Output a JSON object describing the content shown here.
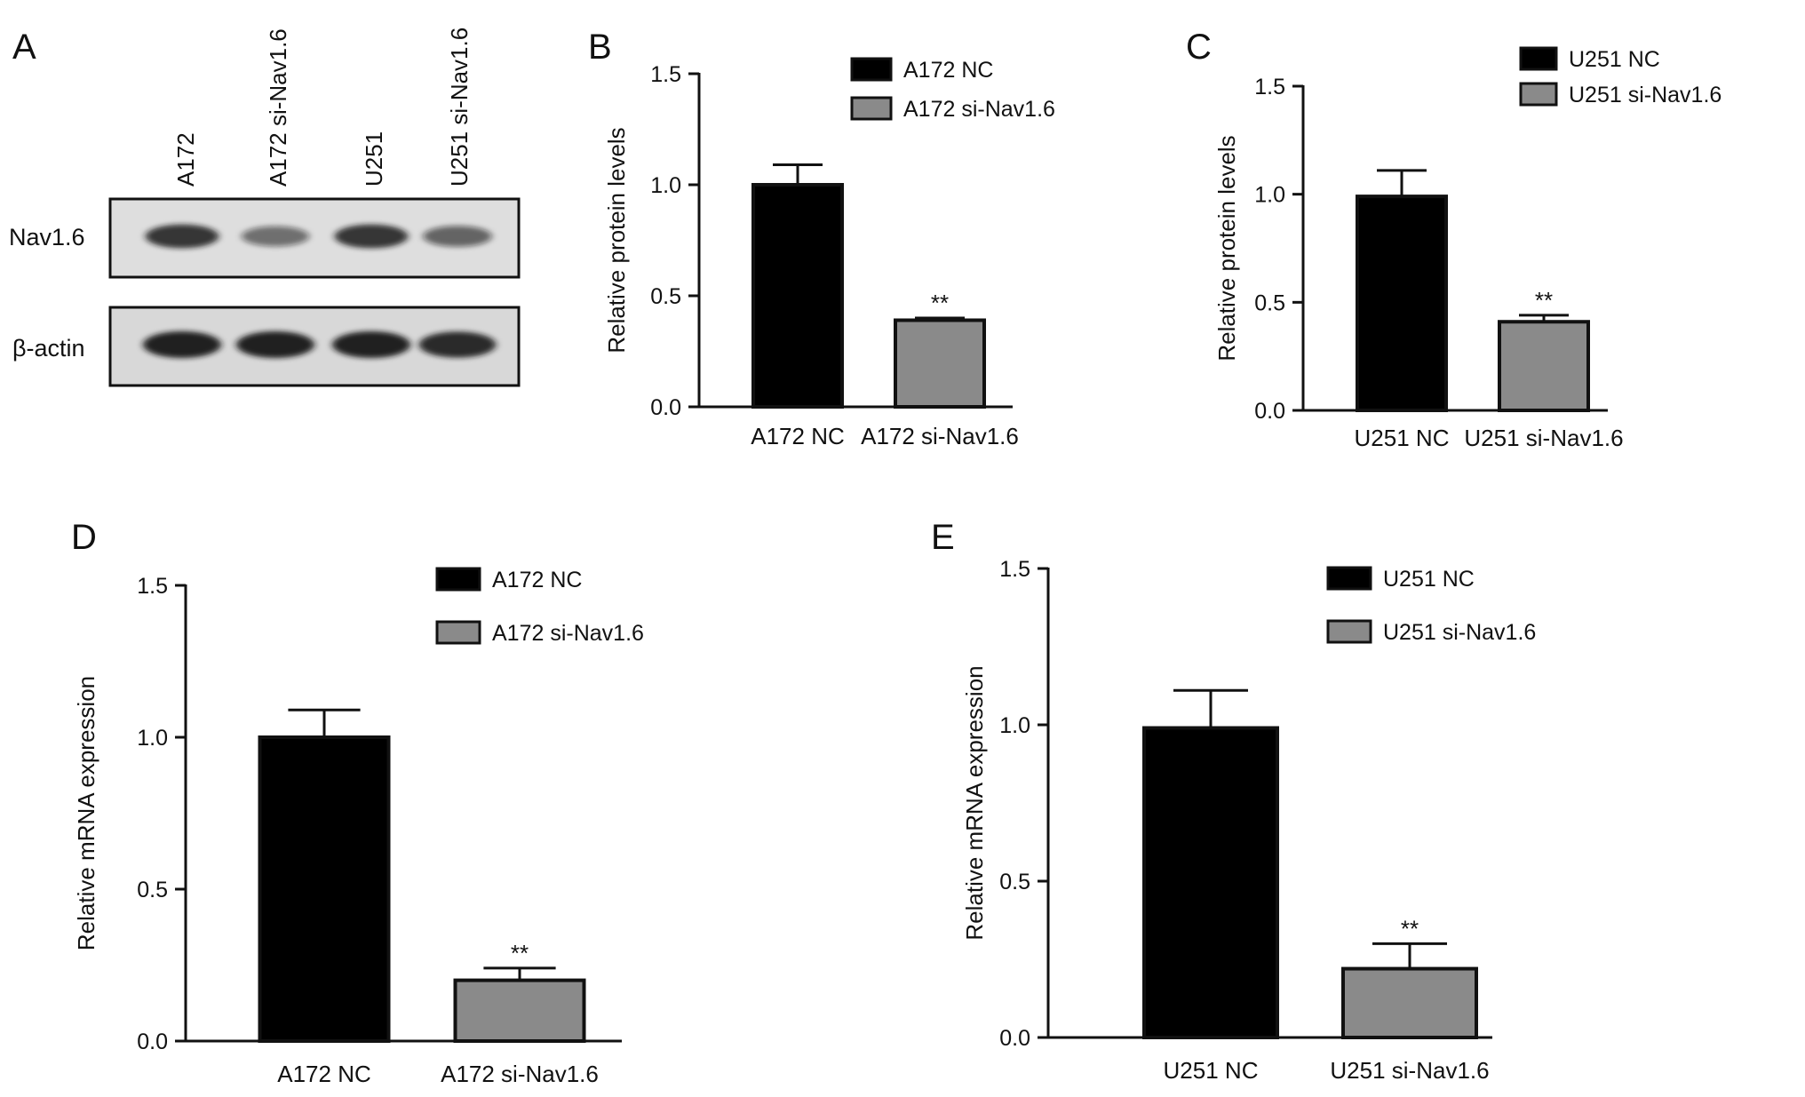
{
  "panel_letters": [
    "A",
    "B",
    "C",
    "D",
    "E"
  ],
  "blot": {
    "lanes": [
      "A172",
      "A172 si-Nav1.6",
      "U251",
      "U251 si-Nav1.6"
    ],
    "rows": [
      {
        "label": "Nav1.6",
        "band_intensity": [
          0.85,
          0.55,
          0.85,
          0.6
        ],
        "band_thickness": [
          0.8,
          0.55,
          0.8,
          0.6
        ]
      },
      {
        "label": "β-actin",
        "band_intensity": [
          0.95,
          0.95,
          0.95,
          0.9
        ],
        "band_thickness": [
          1.0,
          1.0,
          1.0,
          0.95
        ]
      }
    ]
  },
  "colors": {
    "nc": "#000000",
    "si": "#8a8a8a",
    "blot_bg": "#dedede",
    "band": "#141414"
  },
  "chart_data": [
    {
      "panel": "B",
      "type": "bar",
      "categories": [
        "A172 NC",
        "A172 si-Nav1.6"
      ],
      "values": [
        1.0,
        0.39
      ],
      "errors": [
        0.09,
        0.01
      ],
      "significance": [
        "",
        "**"
      ],
      "ylabel": "Relative protein levels",
      "ylim": [
        0,
        1.5
      ],
      "yticks": [
        "0.0",
        "0.5",
        "1.0",
        "1.5"
      ],
      "legend": [
        "A172 NC",
        "A172 si-Nav1.6"
      ],
      "legend_position": "top-right"
    },
    {
      "panel": "C",
      "type": "bar",
      "categories": [
        "U251 NC",
        "U251 si-Nav1.6"
      ],
      "values": [
        0.99,
        0.41
      ],
      "errors": [
        0.12,
        0.03
      ],
      "significance": [
        "",
        "**"
      ],
      "ylabel": "Relative protein levels",
      "ylim": [
        0,
        1.5
      ],
      "yticks": [
        "0.0",
        "0.5",
        "1.0",
        "1.5"
      ],
      "legend": [
        "U251 NC",
        "U251 si-Nav1.6"
      ],
      "legend_position": "top-right"
    },
    {
      "panel": "D",
      "type": "bar",
      "categories": [
        "A172 NC",
        "A172 si-Nav1.6"
      ],
      "values": [
        1.0,
        0.2
      ],
      "errors": [
        0.09,
        0.04
      ],
      "significance": [
        "",
        "**"
      ],
      "ylabel": "Relative mRNA expression",
      "ylim": [
        0,
        1.5
      ],
      "yticks": [
        "0.0",
        "0.5",
        "1.0",
        "1.5"
      ],
      "legend": [
        "A172 NC",
        "A172 si-Nav1.6"
      ],
      "legend_position": "top-right"
    },
    {
      "panel": "E",
      "type": "bar",
      "categories": [
        "U251 NC",
        "U251 si-Nav1.6"
      ],
      "values": [
        0.99,
        0.22
      ],
      "errors": [
        0.12,
        0.08
      ],
      "significance": [
        "",
        "**"
      ],
      "ylabel": "Relative mRNA expression",
      "ylim": [
        0,
        1.5
      ],
      "yticks": [
        "0.0",
        "0.5",
        "1.0",
        "1.5"
      ],
      "legend": [
        "U251 NC",
        "U251 si-Nav1.6"
      ],
      "legend_position": "top-right"
    }
  ]
}
